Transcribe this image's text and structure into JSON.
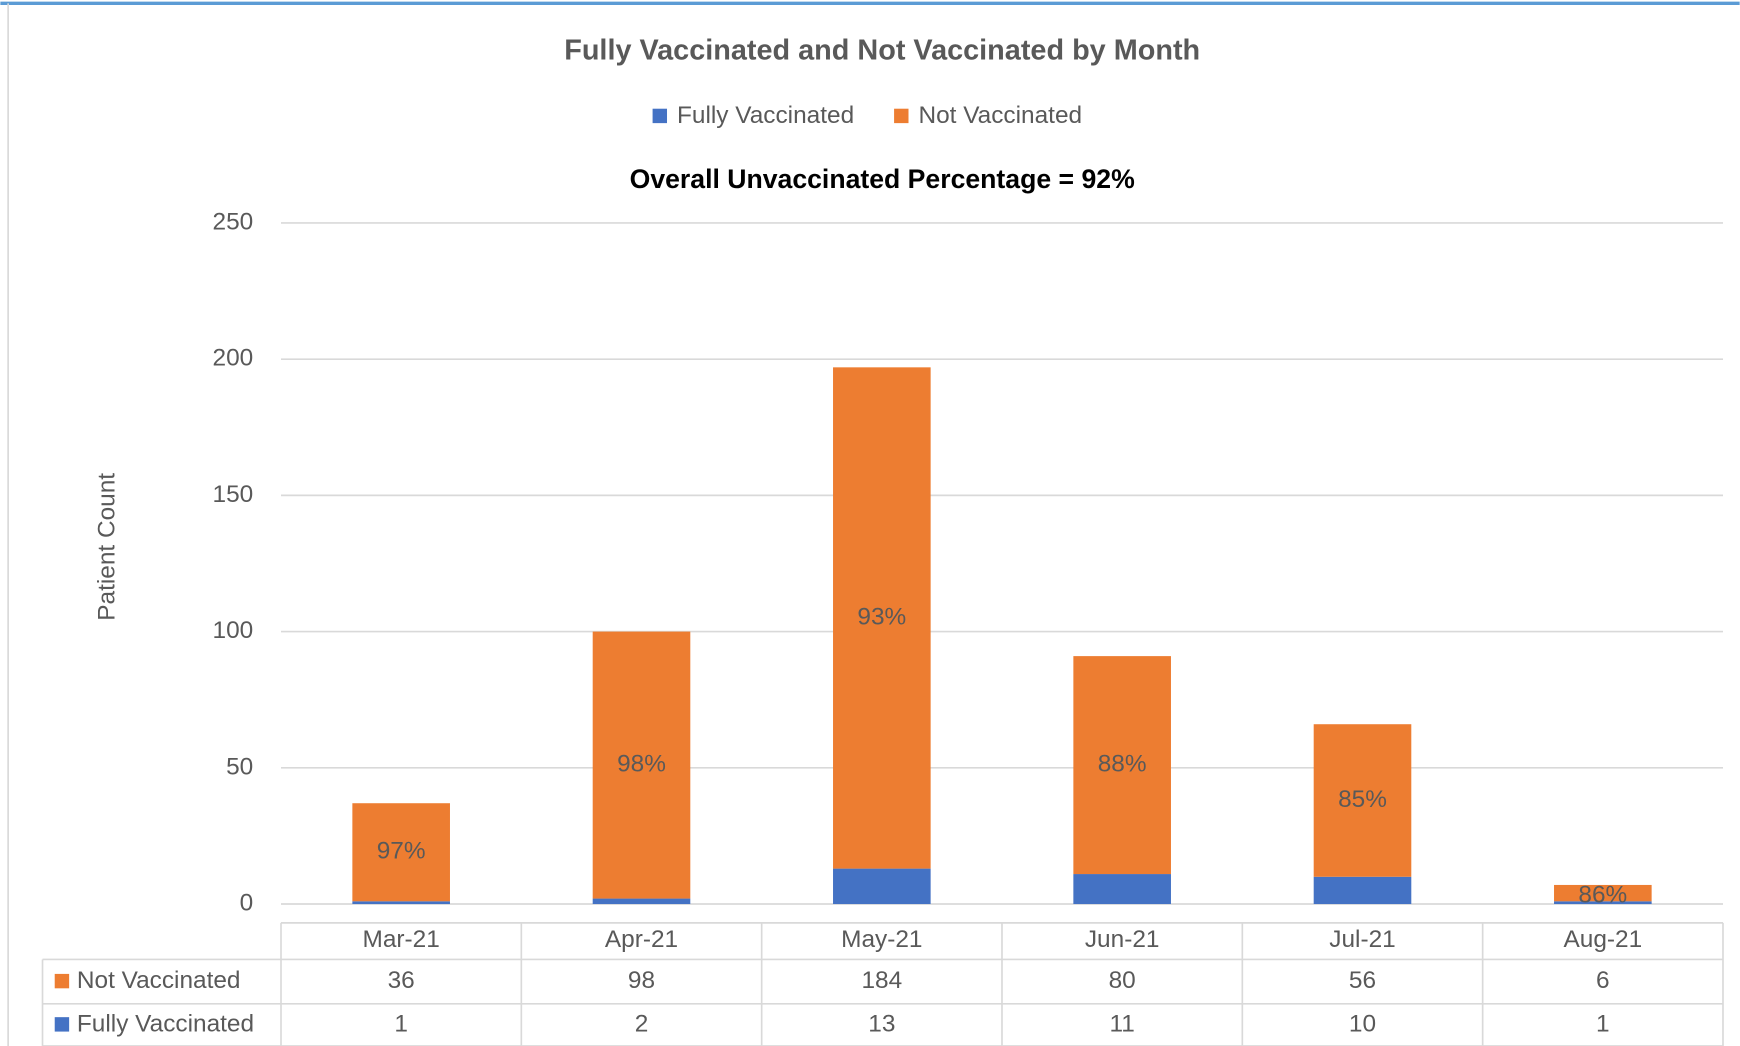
{
  "chart_data": {
    "type": "bar",
    "stacked": true,
    "title": "Fully Vaccinated and Not Vaccinated by Month",
    "subtitle": "Overall Unvaccinated Percentage = 92%",
    "y_label": "Patient Count",
    "categories": [
      "Mar-21",
      "Apr-21",
      "May-21",
      "Jun-21",
      "Jul-21",
      "Aug-21"
    ],
    "series": [
      {
        "name": "Fully Vaccinated",
        "color": "#4472c4",
        "values": [
          1,
          2,
          13,
          11,
          10,
          1
        ]
      },
      {
        "name": "Not Vaccinated",
        "color": "#ed7d31",
        "values": [
          36,
          98,
          184,
          80,
          56,
          6
        ]
      }
    ],
    "unvaccinated_percentages": [
      "97%",
      "98%",
      "93%",
      "88%",
      "85%",
      "86%"
    ],
    "ylim": [
      0,
      250
    ],
    "yticks": [
      0,
      50,
      100,
      150,
      200,
      250
    ],
    "grid": true,
    "legend": "top"
  }
}
